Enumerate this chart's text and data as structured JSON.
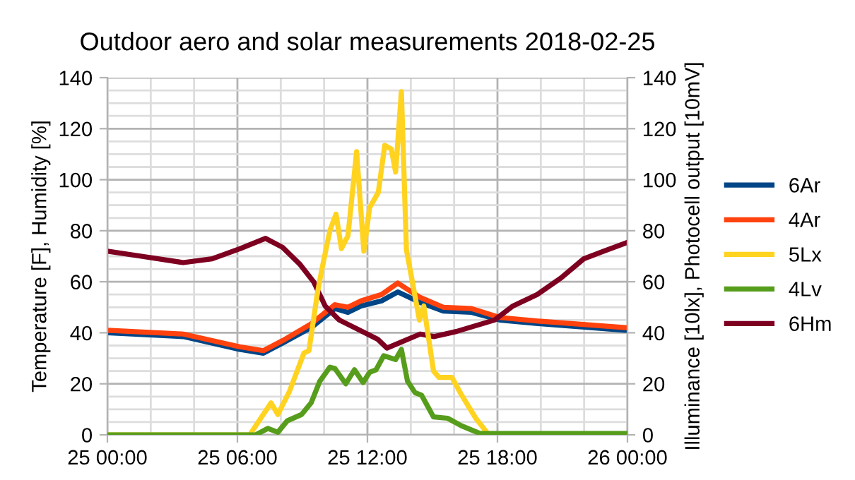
{
  "chart_data": {
    "type": "line",
    "title": "Outdoor aero and solar measurements 2018-02-25",
    "ylabel": "Temperature [F], Humidity [%]",
    "y2label": "Illuminance [10lx], Photocell output [10mV]",
    "xlim": [
      "2018-02-25T00:00",
      "2018-02-26T00:00"
    ],
    "xticks": [
      {
        "value": "2018-02-25T00:00",
        "label": "25 00:00"
      },
      {
        "value": "2018-02-25T02:00",
        "label": null
      },
      {
        "value": "2018-02-25T04:00",
        "label": null
      },
      {
        "value": "2018-02-25T06:00",
        "label": "25 06:00"
      },
      {
        "value": "2018-02-25T08:00",
        "label": null
      },
      {
        "value": "2018-02-25T10:00",
        "label": null
      },
      {
        "value": "2018-02-25T12:00",
        "label": "25 12:00"
      },
      {
        "value": "2018-02-25T14:00",
        "label": null
      },
      {
        "value": "2018-02-25T16:00",
        "label": null
      },
      {
        "value": "2018-02-25T18:00",
        "label": "25 18:00"
      },
      {
        "value": "2018-02-25T20:00",
        "label": null
      },
      {
        "value": "2018-02-25T22:00",
        "label": null
      },
      {
        "value": "2018-02-26T00:00",
        "label": "26 00:00"
      }
    ],
    "ylim": [
      0,
      140
    ],
    "yticks": [
      0,
      {
        "value": 5,
        "label": null
      },
      {
        "value": 10,
        "label": null
      },
      {
        "value": 15,
        "label": null
      },
      20,
      {
        "value": 25,
        "label": null
      },
      {
        "value": 30,
        "label": null
      },
      {
        "value": 35,
        "label": null
      },
      40,
      {
        "value": 45,
        "label": null
      },
      {
        "value": 50,
        "label": null
      },
      {
        "value": 55,
        "label": null
      },
      60,
      {
        "value": 65,
        "label": null
      },
      {
        "value": 70,
        "label": null
      },
      {
        "value": 75,
        "label": null
      },
      80,
      {
        "value": 85,
        "label": null
      },
      {
        "value": 90,
        "label": null
      },
      {
        "value": 95,
        "label": null
      },
      100,
      {
        "value": 105,
        "label": null
      },
      {
        "value": 110,
        "label": null
      },
      {
        "value": 115,
        "label": null
      },
      120,
      {
        "value": 125,
        "label": null
      },
      {
        "value": 130,
        "label": null
      },
      {
        "value": 135,
        "label": null
      },
      140
    ],
    "y2lim": [
      0,
      140
    ],
    "y2ticks": [
      0,
      20,
      40,
      60,
      80,
      100,
      120,
      140
    ],
    "grid": true,
    "legend": "right",
    "line_style": "solid",
    "marker": "none",
    "series": [
      {
        "name": "6Ar",
        "color": "#004586",
        "x": [
          "2018-02-25T00:00",
          "2018-02-25T03:30",
          "2018-02-25T06:06",
          "2018-02-25T07:12",
          "2018-02-25T08:06",
          "2018-02-25T09:24",
          "2018-02-25T10:30",
          "2018-02-25T11:06",
          "2018-02-25T11:42",
          "2018-02-25T12:39",
          "2018-02-25T13:24",
          "2018-02-25T14:24",
          "2018-02-25T15:30",
          "2018-02-25T16:48",
          "2018-02-25T18:06",
          "2018-02-25T20:00",
          "2018-02-25T23:54",
          "2018-02-26T00:00"
        ],
        "values": [
          40,
          38.5,
          33.5,
          32,
          36,
          42,
          49.5,
          48,
          50.5,
          52.5,
          56,
          52,
          48.5,
          48,
          45,
          43.5,
          41,
          41
        ]
      },
      {
        "name": "4Ar",
        "color": "#ff420e",
        "x": [
          "2018-02-25T00:00",
          "2018-02-25T03:30",
          "2018-02-25T06:06",
          "2018-02-25T07:12",
          "2018-02-25T08:06",
          "2018-02-25T09:24",
          "2018-02-25T10:30",
          "2018-02-25T11:06",
          "2018-02-25T11:42",
          "2018-02-25T12:39",
          "2018-02-25T13:24",
          "2018-02-25T14:24",
          "2018-02-25T15:30",
          "2018-02-25T16:48",
          "2018-02-25T18:06",
          "2018-02-25T20:00",
          "2018-02-25T23:54",
          "2018-02-26T00:00"
        ],
        "values": [
          41,
          39.5,
          34.5,
          33,
          37,
          43.5,
          51,
          50,
          52.5,
          55,
          59.5,
          54,
          50,
          49.5,
          46,
          44.5,
          42,
          42
        ]
      },
      {
        "name": "5Lx",
        "color": "#ffd320",
        "axis": "y2",
        "x": [
          "2018-02-25T00:00",
          "2018-02-25T06:34",
          "2018-02-25T07:33",
          "2018-02-25T07:52",
          "2018-02-25T08:24",
          "2018-02-25T09:04",
          "2018-02-25T09:18",
          "2018-02-25T09:42",
          "2018-02-25T09:54",
          "2018-02-25T10:16",
          "2018-02-25T10:33",
          "2018-02-25T10:48",
          "2018-02-25T11:06",
          "2018-02-25T11:30",
          "2018-02-25T11:50",
          "2018-02-25T12:06",
          "2018-02-25T12:30",
          "2018-02-25T12:48",
          "2018-02-25T13:06",
          "2018-02-25T13:18",
          "2018-02-25T13:34",
          "2018-02-25T13:48",
          "2018-02-25T14:24",
          "2018-02-25T14:36",
          "2018-02-25T15:03",
          "2018-02-25T15:18",
          "2018-02-25T15:54",
          "2018-02-25T16:21",
          "2018-02-25T17:00",
          "2018-02-25T17:36",
          "2018-02-26T00:00"
        ],
        "values": [
          0,
          0,
          12.5,
          8,
          17,
          32,
          33,
          56,
          65,
          80,
          86.5,
          73,
          78,
          111,
          72,
          89,
          95,
          113.5,
          112,
          103,
          134.5,
          72.5,
          45,
          50.5,
          25,
          22.5,
          22.5,
          15.5,
          6.5,
          0,
          0
        ]
      },
      {
        "name": "4Lv",
        "color": "#579d1c",
        "axis": "y2",
        "x": [
          "2018-02-25T00:00",
          "2018-02-25T06:51",
          "2018-02-25T07:24",
          "2018-02-25T07:52",
          "2018-02-25T08:18",
          "2018-02-25T08:58",
          "2018-02-25T09:24",
          "2018-02-25T09:48",
          "2018-02-25T10:16",
          "2018-02-25T10:30",
          "2018-02-25T11:00",
          "2018-02-25T11:24",
          "2018-02-25T11:48",
          "2018-02-25T12:06",
          "2018-02-25T12:24",
          "2018-02-25T12:45",
          "2018-02-25T13:18",
          "2018-02-25T13:34",
          "2018-02-25T13:51",
          "2018-02-25T14:12",
          "2018-02-25T14:30",
          "2018-02-25T15:03",
          "2018-02-25T15:42",
          "2018-02-25T16:21",
          "2018-02-25T17:12",
          "2018-02-26T00:00"
        ],
        "values": [
          0,
          0,
          2.5,
          1,
          5.5,
          8,
          12.5,
          21,
          26.5,
          26,
          20,
          25.5,
          20.5,
          24.5,
          25.5,
          31,
          29.5,
          33.5,
          21,
          16.5,
          15.5,
          7,
          6.5,
          3.5,
          0.5,
          0.5
        ]
      },
      {
        "name": "6Hm",
        "color": "#7e0021",
        "x": [
          "2018-02-25T00:00",
          "2018-02-25T01:34",
          "2018-02-25T03:30",
          "2018-02-25T04:50",
          "2018-02-25T06:08",
          "2018-02-25T07:18",
          "2018-02-25T08:05",
          "2018-02-25T08:52",
          "2018-02-25T09:31",
          "2018-02-25T10:03",
          "2018-02-25T10:42",
          "2018-02-25T12:28",
          "2018-02-25T12:54",
          "2018-02-25T14:26",
          "2018-02-25T15:05",
          "2018-02-25T16:06",
          "2018-02-25T17:52",
          "2018-02-25T18:43",
          "2018-02-25T19:50",
          "2018-02-25T20:56",
          "2018-02-25T21:59",
          "2018-02-25T22:54",
          "2018-02-25T23:52",
          "2018-02-26T00:00"
        ],
        "values": [
          72,
          70,
          67.5,
          69,
          73,
          77,
          73.5,
          67,
          60,
          50.5,
          45,
          37.5,
          34,
          39.5,
          38.5,
          40.5,
          45,
          50.5,
          55,
          61.5,
          69,
          72,
          75,
          75.5
        ]
      }
    ]
  }
}
